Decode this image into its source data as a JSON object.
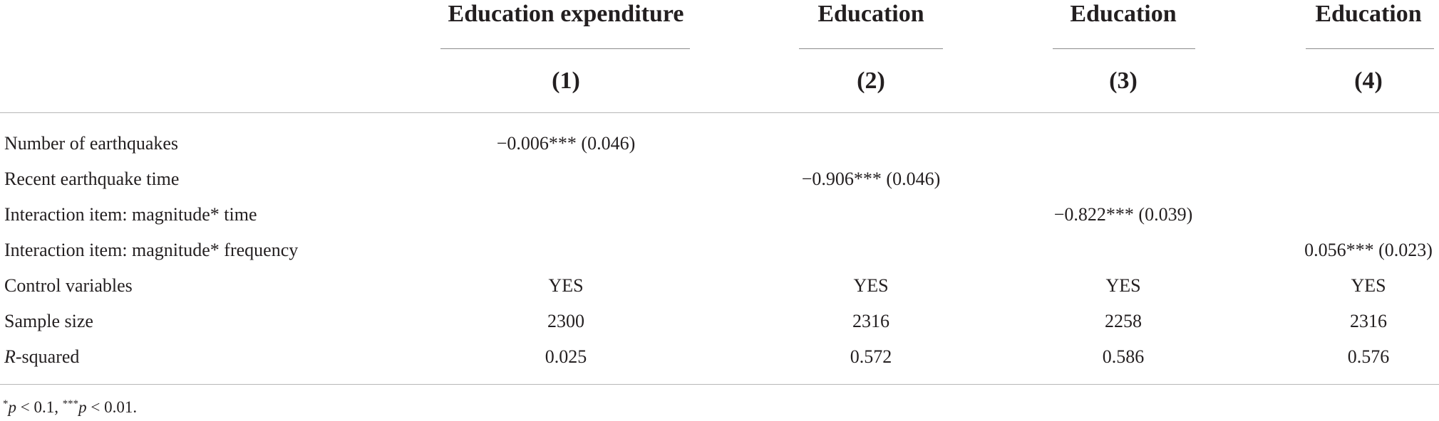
{
  "columns": [
    {
      "header": "Education expenditure",
      "number": "(1)"
    },
    {
      "header": "Education",
      "number": "(2)"
    },
    {
      "header": "Education",
      "number": "(3)"
    },
    {
      "header": "Education",
      "number": "(4)"
    }
  ],
  "rows": [
    {
      "label": "Number of earthquakes",
      "cells": [
        "−0.006*** (0.046)",
        "",
        "",
        ""
      ]
    },
    {
      "label": "Recent earthquake time",
      "cells": [
        "",
        "−0.906*** (0.046)",
        "",
        ""
      ]
    },
    {
      "label": "Interaction item: magnitude* time",
      "cells": [
        "",
        "",
        "−0.822*** (0.039)",
        ""
      ]
    },
    {
      "label": "Interaction item: magnitude* frequency",
      "cells": [
        "",
        "",
        "",
        "0.056*** (0.023)"
      ]
    },
    {
      "label": "Control variables",
      "cells": [
        "YES",
        "YES",
        "YES",
        "YES"
      ]
    },
    {
      "label": "Sample size",
      "cells": [
        "2300",
        "2316",
        "2258",
        "2316"
      ]
    },
    {
      "label_italic": "R",
      "label": "-squared",
      "cells": [
        "0.025",
        "0.572",
        "0.586",
        "0.576"
      ]
    }
  ],
  "footnote": {
    "star1": "*",
    "p1": "p",
    "text1": " < 0.1, ",
    "star3": "***",
    "p2": "p",
    "text2": " < 0.01."
  }
}
